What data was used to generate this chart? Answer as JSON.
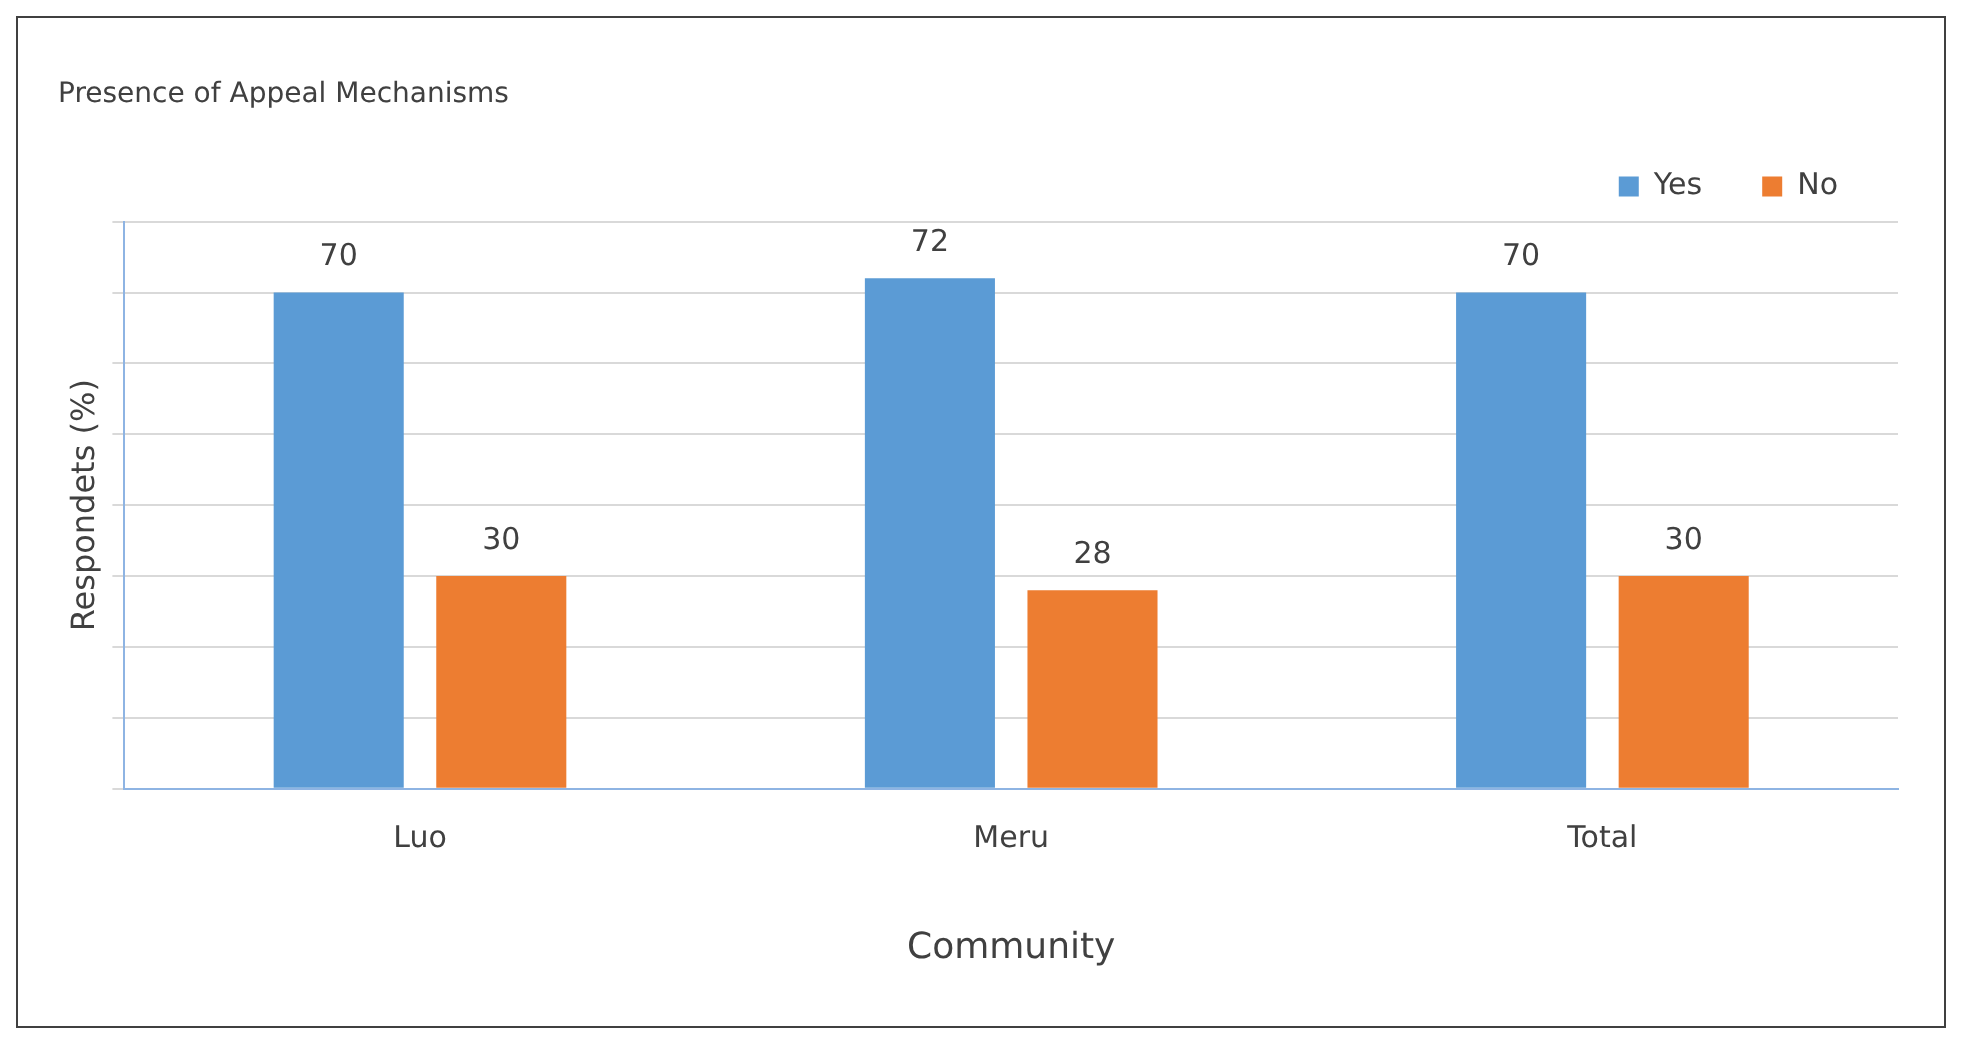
{
  "chart_data": {
    "type": "bar",
    "title": "Presence of Appeal Mechanisms",
    "xlabel": "Community",
    "ylabel": "Respondets (%)",
    "categories": [
      "Luo",
      "Meru",
      "Total"
    ],
    "series": [
      {
        "name": "Yes",
        "color": "#5b9bd5",
        "values": [
          70,
          72,
          70
        ]
      },
      {
        "name": "No",
        "color": "#ed7d31",
        "values": [
          30,
          28,
          30
        ]
      }
    ],
    "ylim": [
      0,
      80
    ],
    "yticks": [
      {
        "value": 0,
        "label": null
      },
      {
        "value": 10,
        "label": null
      },
      {
        "value": 20,
        "label": null
      },
      {
        "value": 30,
        "label": null
      },
      {
        "value": 40,
        "label": null
      },
      {
        "value": 50,
        "label": null
      },
      {
        "value": 60,
        "label": null
      },
      {
        "value": 70,
        "label": null
      },
      {
        "value": 80,
        "label": null
      }
    ],
    "tick_labels": "x",
    "grid": "y",
    "legend": "top right",
    "data_labels": true
  }
}
